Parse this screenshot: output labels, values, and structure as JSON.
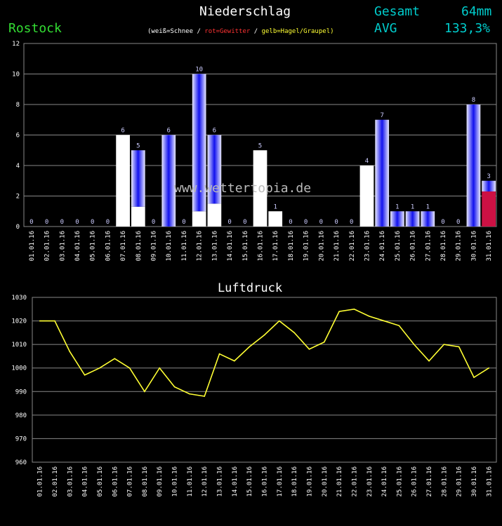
{
  "header": {
    "title": "Niederschlag",
    "station": "Rostock",
    "legend": {
      "white": "(weiß=Schnee /",
      "red": "rot=Gewitter",
      "sep": "/",
      "yellow": "gelb=Hagel/Graupel)"
    },
    "total_label": "Gesamt",
    "total_value": "64mm",
    "avg_label": "AVG",
    "avg_value": "133,3%"
  },
  "watermark": "www.wettertopia.de",
  "colors": {
    "rain": "#2222ee",
    "snow": "#ffffff",
    "thunder": "#cc1144",
    "pressure_line": "#ffff33",
    "grid": "#888888"
  },
  "chart_data": [
    {
      "type": "bar",
      "title": "Niederschlag",
      "ylim": [
        0,
        12
      ],
      "yticks": [
        0,
        2,
        4,
        6,
        8,
        10,
        12
      ],
      "categories": [
        "01.01.16",
        "02.01.16",
        "03.01.16",
        "04.01.16",
        "05.01.16",
        "06.01.16",
        "07.01.16",
        "08.01.16",
        "09.01.16",
        "10.01.16",
        "11.01.16",
        "12.01.16",
        "13.01.16",
        "14.01.16",
        "15.01.16",
        "16.01.16",
        "17.01.16",
        "18.01.16",
        "19.01.16",
        "20.01.16",
        "21.01.16",
        "22.01.16",
        "23.01.16",
        "24.01.16",
        "25.01.16",
        "26.01.16",
        "27.01.16",
        "28.01.16",
        "29.01.16",
        "30.01.16",
        "31.01.16"
      ],
      "values": [
        0,
        0,
        0,
        0,
        0,
        0,
        6,
        5,
        0,
        6,
        0,
        10,
        6,
        0,
        0,
        5,
        1,
        0,
        0,
        0,
        0,
        0,
        4,
        7,
        1,
        1,
        1,
        0,
        0,
        8,
        3
      ],
      "series": [
        {
          "name": "Schnee",
          "values": [
            0,
            0,
            0,
            0,
            0,
            0,
            6,
            1.3,
            0,
            0,
            0,
            1,
            1.5,
            0,
            0,
            5,
            1,
            0,
            0,
            0,
            0,
            0,
            4,
            0,
            0,
            0,
            0,
            0,
            0,
            0,
            0
          ]
        },
        {
          "name": "Gewitter",
          "values": [
            0,
            0,
            0,
            0,
            0,
            0,
            0,
            0,
            0,
            0,
            0,
            0,
            0,
            0,
            0,
            0,
            0,
            0,
            0,
            0,
            0,
            0,
            0,
            0,
            0,
            0,
            0,
            0,
            0,
            0,
            2.3
          ]
        }
      ]
    },
    {
      "type": "line",
      "title": "Luftdruck",
      "ylim": [
        960,
        1030
      ],
      "yticks": [
        960,
        970,
        980,
        990,
        1000,
        1010,
        1020,
        1030
      ],
      "categories": [
        "01.01.16",
        "02.01.16",
        "03.01.16",
        "04.01.16",
        "05.01.16",
        "06.01.16",
        "07.01.16",
        "08.01.16",
        "09.01.16",
        "10.01.16",
        "11.01.16",
        "12.01.16",
        "13.01.16",
        "14.01.16",
        "15.01.16",
        "16.01.16",
        "17.01.16",
        "18.01.16",
        "19.01.16",
        "20.01.16",
        "21.01.16",
        "22.01.16",
        "23.01.16",
        "24.01.16",
        "25.01.16",
        "26.01.16",
        "27.01.16",
        "28.01.16",
        "29.01.16",
        "30.01.16",
        "31.01.16"
      ],
      "values": [
        1020,
        1020,
        1007,
        997,
        1000,
        1004,
        1000,
        990,
        1000,
        992,
        989,
        988,
        1006,
        1003,
        1009,
        1014,
        1020,
        1015,
        1008,
        1011,
        1024,
        1025,
        1022,
        1020,
        1018,
        1010,
        1003,
        1010,
        1009,
        996,
        1000
      ]
    }
  ]
}
